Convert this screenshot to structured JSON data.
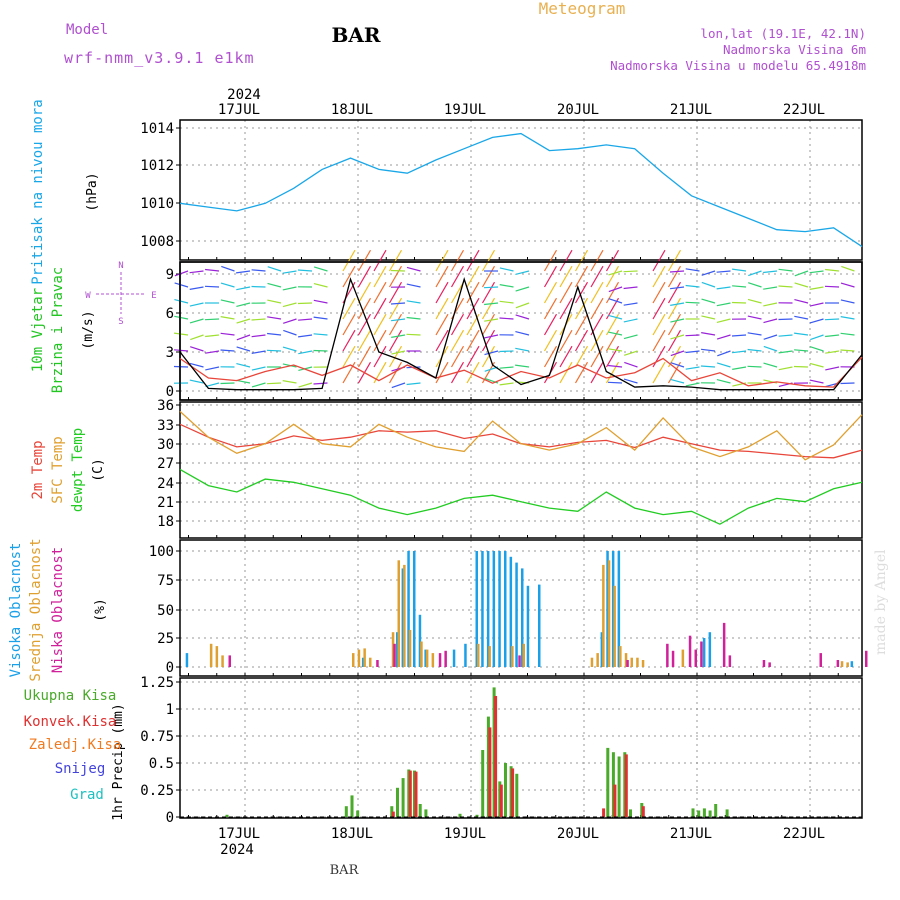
{
  "header": {
    "model_label": "Model",
    "model_name": "wrf-nmm_v3.9.1 e1km",
    "station": "BAR",
    "title": "Meteogram",
    "coords": "lon,lat (19.1E, 42.1N)",
    "altitude": "Nadmorska Visina 6m",
    "model_altitude": "Nadmorska Visina u modelu 65.4918m",
    "footer_station": "BAR",
    "watermark": "made by Angel"
  },
  "colors": {
    "pressure": "#1aa7e8",
    "wind_label": "#22c522",
    "t2m": "#e8463a",
    "tsfc": "#e0a030",
    "dewpt": "#22cc22",
    "cloud_high": "#1aa0e8",
    "cloud_mid": "#e0a030",
    "cloud_low": "#d0209a",
    "precip_total": "#4aaa2a",
    "precip_conv": "#e03030",
    "precip_frozen": "#f07a20",
    "snow": "#4444dd",
    "hail": "#20c0c0",
    "compass": "#b050d0"
  },
  "chart_data": [
    {
      "type": "line",
      "panel": "pressure",
      "ylabel_main": "Pritisak na nivou mora",
      "ylabel_unit": "(hPa)",
      "year": "2024",
      "x_ticks": [
        "17JUL",
        "18JUL",
        "19JUL",
        "20JUL",
        "21JUL",
        "22JUL"
      ],
      "ylim": [
        1007.2,
        1014.4
      ],
      "y_ticks": [
        "1014",
        "1012",
        "1010",
        "1008"
      ],
      "x_days": [
        0.0,
        0.25,
        0.5,
        0.75,
        1.0,
        1.25,
        1.5,
        1.75,
        2.0,
        2.25,
        2.5,
        2.75,
        3.0,
        3.25,
        3.5,
        3.75,
        4.0,
        4.25,
        4.5,
        4.75,
        5.0,
        5.25,
        5.5,
        5.75,
        6.0
      ],
      "series": [
        {
          "values": [
            1010.0,
            1009.8,
            1009.6,
            1010.0,
            1010.8,
            1011.8,
            1012.4,
            1011.8,
            1011.6,
            1012.3,
            1012.9,
            1013.5,
            1013.7,
            1012.8,
            1012.9,
            1013.1,
            1012.9,
            1011.6,
            1010.4,
            1009.8,
            1009.2,
            1008.6,
            1008.5,
            1008.7,
            1007.7
          ]
        }
      ]
    },
    {
      "type": "line",
      "panel": "wind",
      "ylabel_main": "10m Vjetar",
      "ylabel_sub": "Brzina i Pravac",
      "ylabel_unit": "(m/s)",
      "compass": {
        "n": "N",
        "s": "S",
        "e": "E",
        "w": "W"
      },
      "ylim": [
        -0.8,
        9.8
      ],
      "y_ticks": [
        "9",
        "6",
        "3",
        "0"
      ],
      "x_days": [
        0.0,
        0.25,
        0.5,
        0.75,
        1.0,
        1.25,
        1.5,
        1.75,
        2.0,
        2.25,
        2.5,
        2.75,
        3.0,
        3.25,
        3.5,
        3.75,
        4.0,
        4.25,
        4.5,
        4.75,
        5.0,
        5.25,
        5.5,
        5.75,
        6.0
      ],
      "series": [
        {
          "values": [
            2.5,
            1.0,
            0.8,
            1.5,
            2.0,
            1.2,
            2.0,
            0.8,
            2.0,
            1.0,
            1.6,
            0.6,
            1.5,
            1.0,
            2.0,
            1.0,
            1.4,
            2.5,
            0.8,
            1.4,
            0.4,
            0.7,
            0.4,
            0.3,
            2.6
          ]
        },
        {
          "values": [
            3.0,
            0.2,
            0.1,
            0.1,
            0.1,
            0.2,
            8.6,
            3.0,
            2.2,
            1.0,
            8.6,
            2.0,
            0.5,
            1.2,
            8.0,
            1.5,
            0.3,
            0.4,
            0.3,
            0.1,
            0.1,
            0.1,
            0.1,
            0.1,
            2.8
          ]
        }
      ]
    },
    {
      "type": "line",
      "panel": "temperature",
      "ylabel_main": "2m Temp",
      "ylabel_sub": "SFC Temp",
      "ylabel_sub2": "dewpt Temp",
      "ylabel_unit": "(C)",
      "ylim": [
        16.5,
        36.2
      ],
      "y_ticks": [
        "36",
        "33",
        "30",
        "27",
        "24",
        "21",
        "18"
      ],
      "x_days": [
        0.0,
        0.25,
        0.5,
        0.75,
        1.0,
        1.25,
        1.5,
        1.75,
        2.0,
        2.25,
        2.5,
        2.75,
        3.0,
        3.25,
        3.5,
        3.75,
        4.0,
        4.25,
        4.5,
        4.75,
        5.0,
        5.25,
        5.5,
        5.75,
        6.0
      ],
      "series": [
        {
          "values": [
            33.0,
            31.0,
            29.5,
            30.0,
            31.2,
            30.5,
            31.0,
            32.0,
            31.8,
            32.0,
            30.8,
            31.5,
            30.0,
            29.5,
            30.2,
            30.5,
            29.4,
            31.0,
            30.0,
            29.0,
            28.8,
            28.4,
            28.0,
            27.8,
            29.0
          ]
        },
        {
          "values": [
            35.0,
            31.0,
            28.5,
            30.0,
            33.0,
            30.0,
            29.5,
            33.0,
            31.0,
            29.5,
            28.8,
            33.5,
            30.0,
            29.0,
            30.0,
            32.5,
            29.0,
            34.0,
            29.5,
            28.0,
            29.5,
            32.0,
            27.5,
            29.8,
            34.5
          ]
        },
        {
          "values": [
            26.0,
            23.5,
            22.5,
            24.5,
            24.0,
            23.0,
            22.0,
            20.0,
            19.0,
            20.0,
            21.5,
            22.0,
            21.0,
            20.0,
            19.5,
            22.5,
            20.0,
            19.0,
            19.5,
            17.5,
            20.0,
            21.5,
            21.0,
            23.0,
            24.0
          ]
        }
      ]
    },
    {
      "type": "bar",
      "panel": "clouds",
      "ylabel_main": "Visoka Oblacnost",
      "ylabel_sub": "Srednja Oblacnost",
      "ylabel_sub2": "Niska Oblacnost",
      "ylabel_unit": "(%)",
      "ylim": [
        0,
        100
      ],
      "y_ticks": [
        "100",
        "75",
        "50",
        "25",
        "0"
      ],
      "series": [
        {
          "x": [
            0.05,
            1.6,
            1.9,
            1.95,
            2.0,
            2.05,
            2.1,
            2.15,
            2.4,
            2.5,
            2.6,
            2.65,
            2.7,
            2.75,
            2.8,
            2.85,
            2.9,
            2.95,
            3.0,
            3.05,
            3.15,
            3.7,
            3.75,
            3.8,
            3.85,
            4.6,
            4.65,
            5.9
          ],
          "values": [
            12,
            8,
            30,
            85,
            100,
            100,
            45,
            15,
            15,
            20,
            100,
            100,
            100,
            100,
            100,
            100,
            95,
            90,
            85,
            70,
            71,
            30,
            100,
            100,
            100,
            25,
            30,
            5
          ]
        },
        {
          "x": [
            0.25,
            0.3,
            0.35,
            1.5,
            1.55,
            1.6,
            1.65,
            1.85,
            1.9,
            1.95,
            2.0,
            2.1,
            2.15,
            2.2,
            2.6,
            2.7,
            2.9,
            3.0,
            3.6,
            3.65,
            3.7,
            3.75,
            3.8,
            3.85,
            3.9,
            3.95,
            4.0,
            4.05,
            4.4,
            5.8,
            5.85
          ],
          "values": [
            20,
            18,
            10,
            12,
            15,
            16,
            8,
            30,
            92,
            88,
            32,
            22,
            15,
            12,
            20,
            18,
            18,
            20,
            8,
            12,
            88,
            92,
            70,
            18,
            12,
            8,
            8,
            6,
            15,
            5,
            4
          ]
        },
        {
          "x": [
            0.4,
            1.7,
            1.85,
            2.25,
            2.3,
            2.95,
            3.9,
            4.25,
            4.3,
            4.45,
            4.5,
            4.55,
            4.75,
            4.8,
            5.1,
            5.15,
            5.6,
            5.75,
            6.0
          ],
          "values": [
            10,
            6,
            20,
            12,
            14,
            10,
            6,
            20,
            14,
            27,
            15,
            22,
            38,
            10,
            6,
            4,
            12,
            6,
            14
          ]
        }
      ]
    },
    {
      "type": "bar",
      "panel": "precipitation",
      "ylabel_main": "1hr Precip",
      "ylabel_unit": "(mm)",
      "legend": [
        "Ukupna Kisa",
        "Konvek.Kisa",
        "Zaledj.Kisa",
        "Snijeg",
        "Grad"
      ],
      "ylim": [
        0,
        1.25
      ],
      "y_ticks": [
        "1.25",
        "1",
        "0.75",
        "0.5",
        "0.25",
        "0"
      ],
      "series": [
        {
          "x": [
            0.4,
            1.45,
            1.5,
            1.55,
            1.85,
            1.9,
            1.95,
            2.0,
            2.05,
            2.1,
            2.15,
            2.45,
            2.6,
            2.65,
            2.7,
            2.75,
            2.8,
            2.85,
            2.9,
            2.95,
            3.75,
            3.8,
            3.85,
            3.9,
            3.95,
            4.05,
            4.5,
            4.55,
            4.6,
            4.65,
            4.7,
            4.8
          ],
          "values": [
            0.02,
            0.1,
            0.2,
            0.06,
            0.1,
            0.27,
            0.36,
            0.44,
            0.43,
            0.12,
            0.07,
            0.03,
            0.02,
            0.62,
            0.93,
            1.2,
            0.33,
            0.5,
            0.47,
            0.4,
            0.64,
            0.6,
            0.56,
            0.6,
            0.07,
            0.13,
            0.08,
            0.06,
            0.08,
            0.06,
            0.12,
            0.07
          ]
        },
        {
          "x": [
            1.85,
            2.0,
            2.05,
            2.7,
            2.75,
            2.8,
            2.9,
            3.7,
            3.8,
            3.9,
            4.05
          ],
          "values": [
            0.05,
            0.43,
            0.42,
            0.83,
            1.12,
            0.3,
            0.45,
            0.08,
            0.3,
            0.58,
            0.1
          ]
        }
      ]
    }
  ]
}
